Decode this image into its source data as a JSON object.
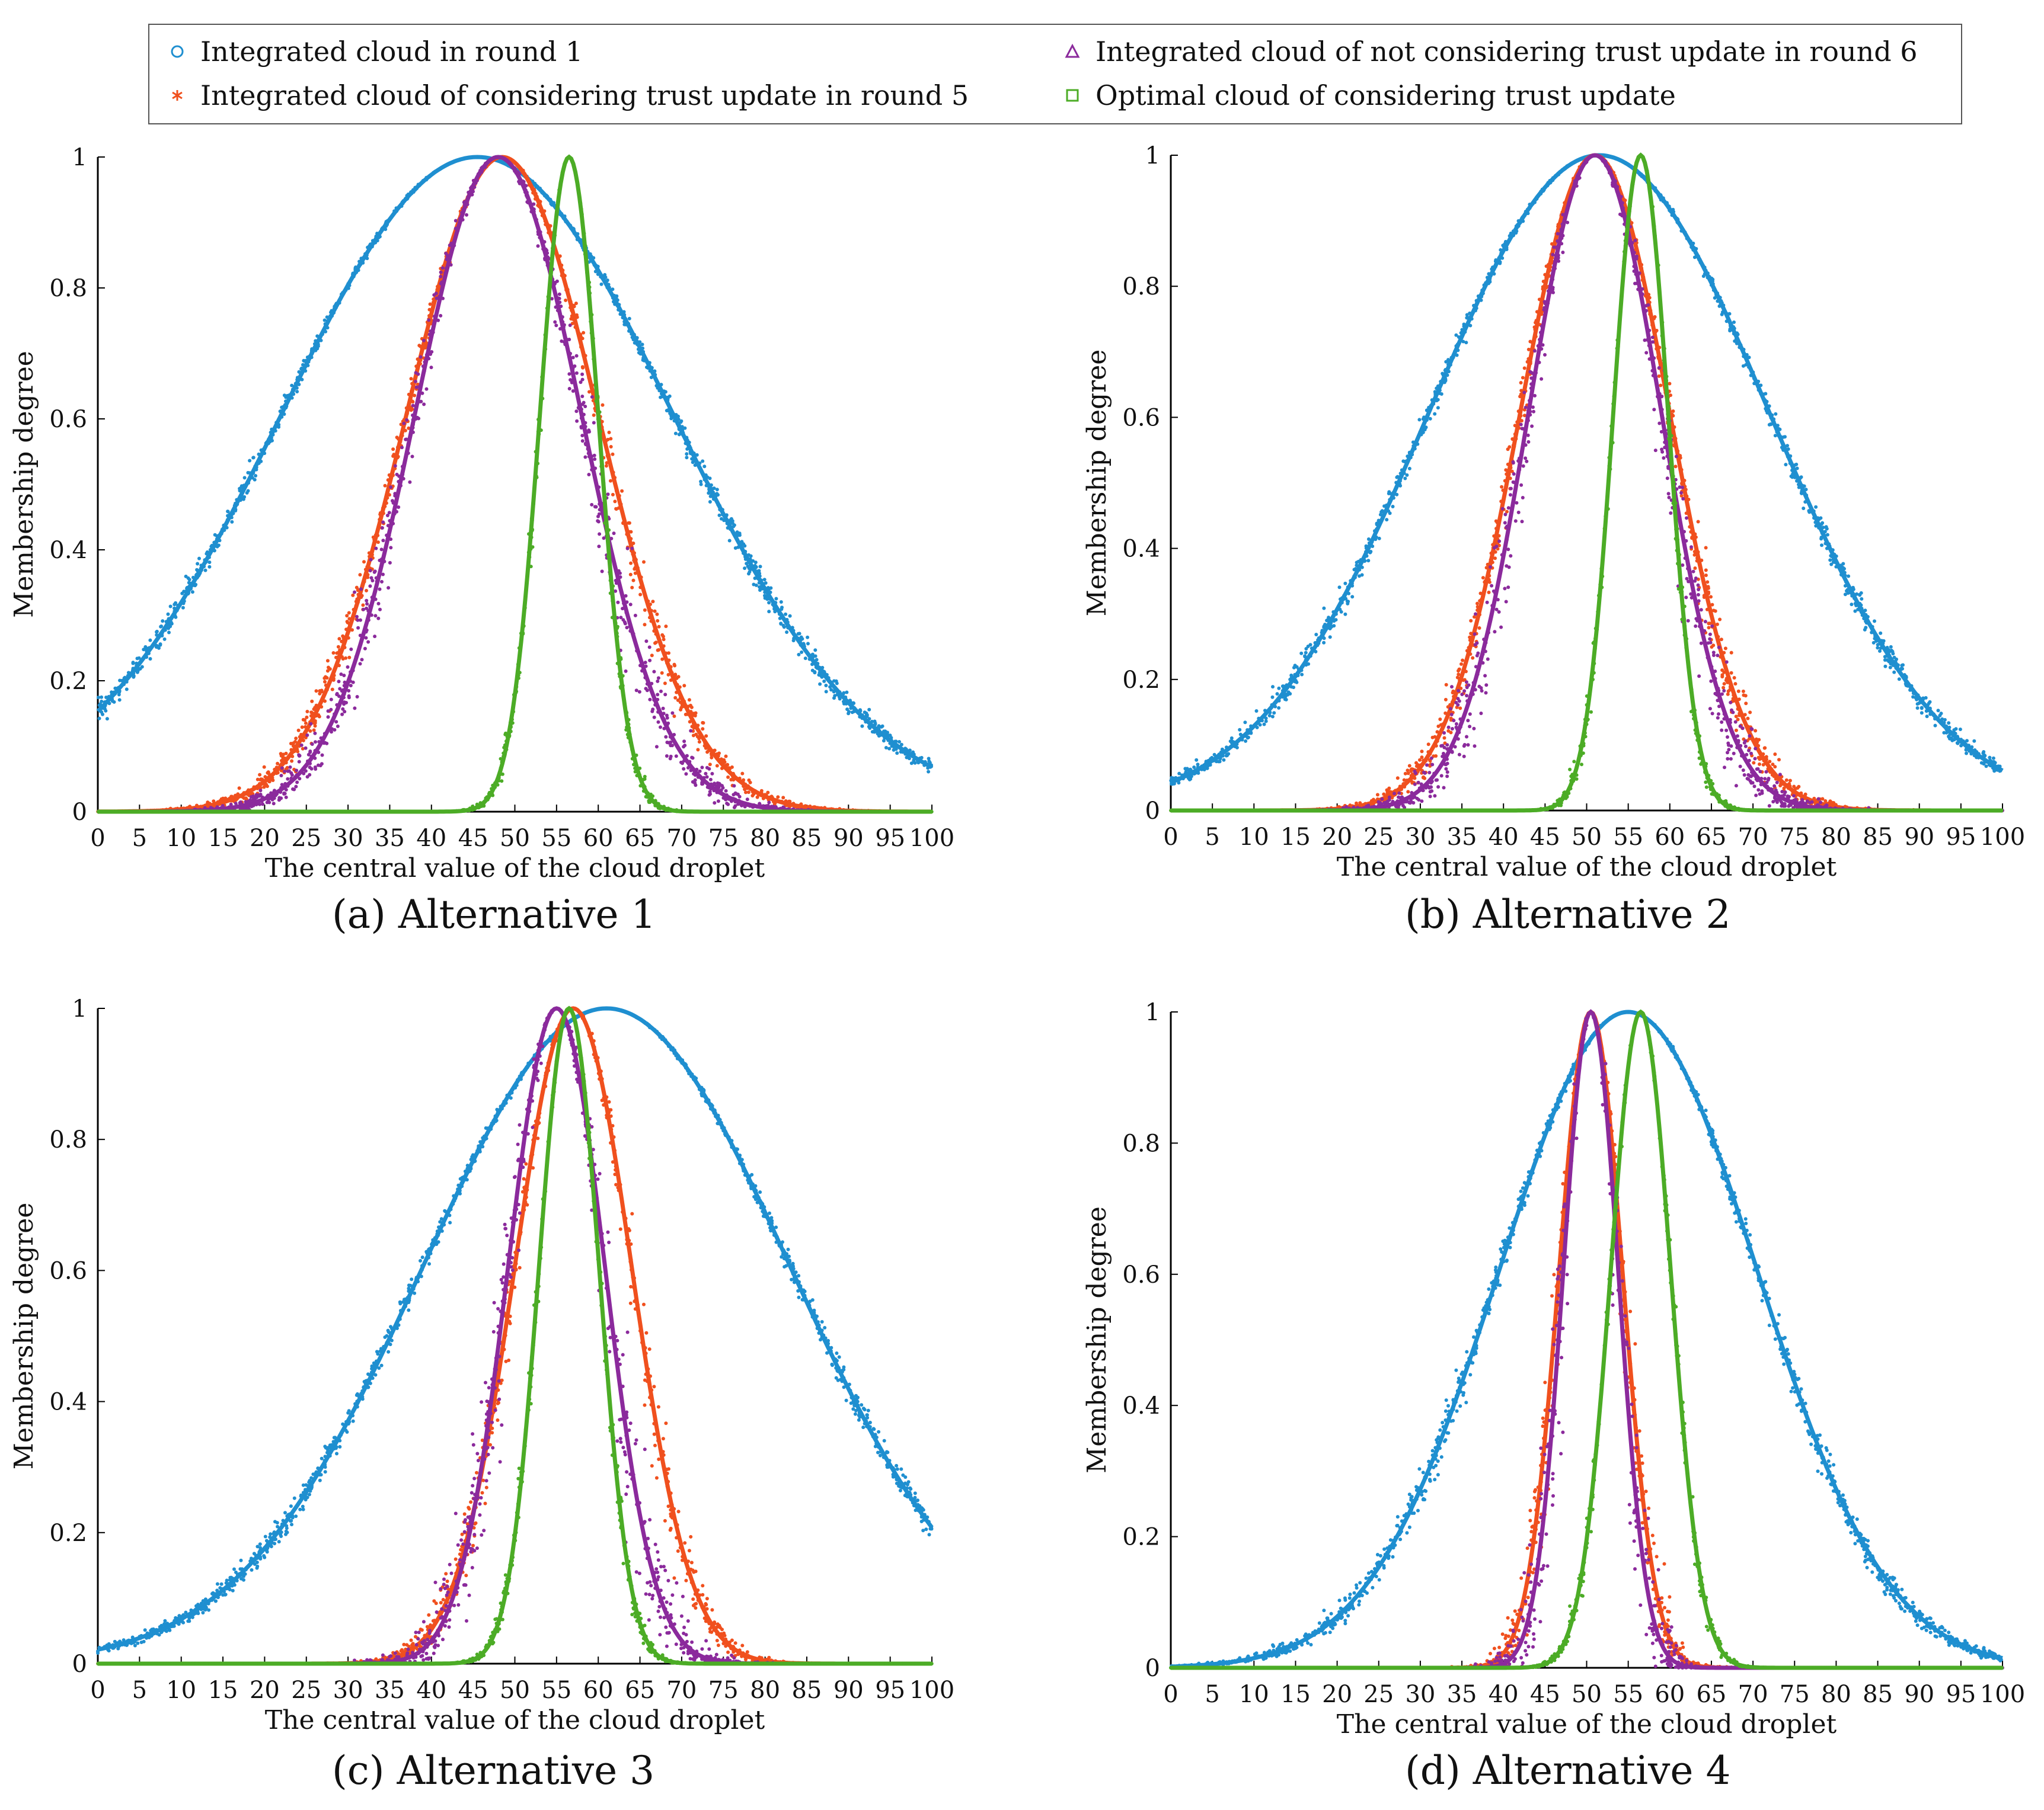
{
  "legend": {
    "items": [
      {
        "label": "Integrated cloud in round 1",
        "color": "#1f8fd0",
        "marker": "circle-icon"
      },
      {
        "label": "Integrated cloud of considering trust update in round 5",
        "color": "#f0501e",
        "marker": "asterisk-icon"
      },
      {
        "label": "Integrated cloud of not considering trust update in round 6",
        "color": "#8b2a9c",
        "marker": "triangle-icon"
      },
      {
        "label": "Optimal cloud of considering trust update",
        "color": "#4cac26",
        "marker": "square-icon"
      }
    ]
  },
  "chart_data": [
    {
      "type": "scatter",
      "caption": "(a) Alternative 1",
      "xlabel": "The central value of the cloud droplet",
      "ylabel": "Membership degree",
      "xlim": [
        0,
        100
      ],
      "ylim": [
        0,
        1
      ],
      "xticks": [
        "0",
        "5",
        "10",
        "15",
        "20",
        "25",
        "30",
        "35",
        "40",
        "45",
        "50",
        "55",
        "60",
        "65",
        "70",
        "75",
        "80",
        "85",
        "90",
        "95",
        "100"
      ],
      "yticks": [
        "0",
        "0.2",
        "0.4",
        "0.6",
        "0.8",
        "1"
      ],
      "series": [
        {
          "name": "Integrated cloud in round 1",
          "Ex": 45.5,
          "En": 23.5,
          "He": 0.3
        },
        {
          "name": "Integrated cloud of considering trust update in round 5",
          "Ex": 48.5,
          "En": 11.5,
          "He": 0.3
        },
        {
          "name": "Integrated cloud of not considering trust update in round 6",
          "Ex": 48.0,
          "En": 10.0,
          "He": 0.5
        },
        {
          "name": "Optimal cloud of considering trust update",
          "Ex": 56.5,
          "En": 3.5,
          "He": 0.1
        }
      ]
    },
    {
      "type": "scatter",
      "caption": "(b) Alternative 2",
      "xlabel": "The central value of the cloud droplet",
      "ylabel": "Membership degree",
      "xlim": [
        0,
        100
      ],
      "ylim": [
        0,
        1
      ],
      "xticks": [
        "0",
        "5",
        "10",
        "15",
        "20",
        "25",
        "30",
        "35",
        "40",
        "45",
        "50",
        "55",
        "60",
        "65",
        "70",
        "75",
        "80",
        "85",
        "90",
        "95",
        "100"
      ],
      "yticks": [
        "0",
        "0.2",
        "0.4",
        "0.6",
        "0.8",
        "1"
      ],
      "series": [
        {
          "name": "Integrated cloud in round 1",
          "Ex": 51.5,
          "En": 20.5,
          "He": 0.3
        },
        {
          "name": "Integrated cloud of considering trust update in round 5",
          "Ex": 51.0,
          "En": 9.0,
          "He": 0.3
        },
        {
          "name": "Integrated cloud of not considering trust update in round 6",
          "Ex": 51.0,
          "En": 8.0,
          "He": 0.5
        },
        {
          "name": "Optimal cloud of considering trust update",
          "Ex": 56.5,
          "En": 3.3,
          "He": 0.1
        }
      ]
    },
    {
      "type": "scatter",
      "caption": "(c) Alternative 3",
      "xlabel": "The central value of the cloud droplet",
      "ylabel": "Membership degree",
      "xlim": [
        0,
        100
      ],
      "ylim": [
        0,
        1
      ],
      "xticks": [
        "0",
        "5",
        "10",
        "15",
        "20",
        "25",
        "30",
        "35",
        "40",
        "45",
        "50",
        "55",
        "60",
        "65",
        "70",
        "75",
        "80",
        "85",
        "90",
        "95",
        "100"
      ],
      "yticks": [
        "0",
        "0.2",
        "0.4",
        "0.6",
        "0.8",
        "1"
      ],
      "series": [
        {
          "name": "Integrated cloud in round 1",
          "Ex": 61.0,
          "En": 22.0,
          "He": 0.3
        },
        {
          "name": "Integrated cloud of considering trust update in round 5",
          "Ex": 57.0,
          "En": 7.0,
          "He": 0.3
        },
        {
          "name": "Integrated cloud of not considering trust update in round 6",
          "Ex": 55.0,
          "En": 5.8,
          "He": 0.5
        },
        {
          "name": "Optimal cloud of considering trust update",
          "Ex": 56.5,
          "En": 3.6,
          "He": 0.1
        }
      ]
    },
    {
      "type": "scatter",
      "caption": "(d) Alternative 4",
      "xlabel": "The central value of the cloud droplet",
      "ylabel": "Membership degree",
      "xlim": [
        0,
        100
      ],
      "ylim": [
        0,
        1
      ],
      "xticks": [
        "0",
        "5",
        "10",
        "15",
        "20",
        "25",
        "30",
        "35",
        "40",
        "45",
        "50",
        "55",
        "60",
        "65",
        "70",
        "75",
        "80",
        "85",
        "90",
        "95",
        "100"
      ],
      "yticks": [
        "0",
        "0.2",
        "0.4",
        "0.6",
        "0.8",
        "1"
      ],
      "series": [
        {
          "name": "Integrated cloud in round 1",
          "Ex": 55.0,
          "En": 15.5,
          "He": 0.3
        },
        {
          "name": "Integrated cloud of considering trust update in round 5",
          "Ex": 50.5,
          "En": 3.8,
          "He": 0.3
        },
        {
          "name": "Integrated cloud of not considering trust update in round 6",
          "Ex": 50.5,
          "En": 3.3,
          "He": 0.4
        },
        {
          "name": "Optimal cloud of considering trust update",
          "Ex": 56.5,
          "En": 3.6,
          "He": 0.1
        }
      ]
    }
  ]
}
